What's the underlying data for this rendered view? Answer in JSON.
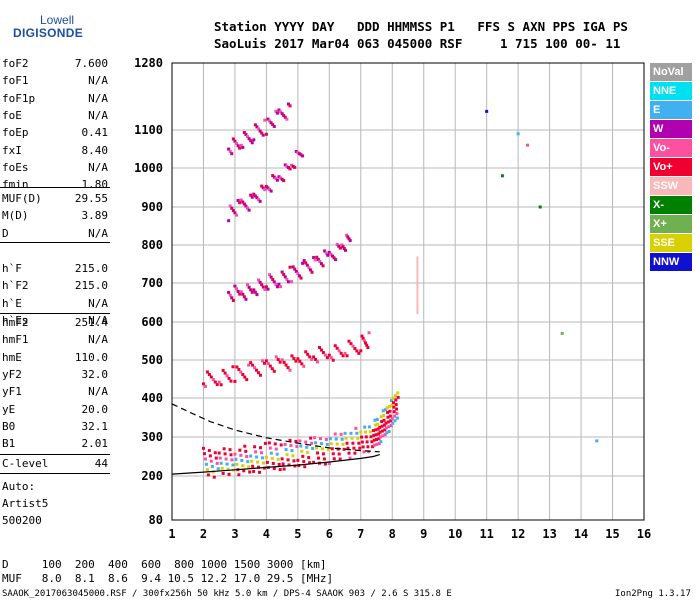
{
  "logo": {
    "line1": "Lowell",
    "line2": "DIGISONDE"
  },
  "header": {
    "line1": "Station YYYY DAY   DDD HHMMSS P1   FFS S AXN PPS IGA PS",
    "line2": "SaoLuis 2017 Mar04 063 045000 RSF     1 715 100 00- 11"
  },
  "params": {
    "group1": [
      {
        "name": "foF2",
        "value": "7.600"
      },
      {
        "name": "foF1",
        "value": "N/A"
      },
      {
        "name": "foF1p",
        "value": "N/A"
      },
      {
        "name": "foE",
        "value": "N/A"
      },
      {
        "name": "foEp",
        "value": "0.41"
      },
      {
        "name": "fxI",
        "value": "8.40"
      },
      {
        "name": "foEs",
        "value": "N/A"
      },
      {
        "name": "fmin",
        "value": "1.80"
      }
    ],
    "group2": [
      {
        "name": "MUF(D)",
        "value": "29.55"
      },
      {
        "name": "M(D)",
        "value": "3.89"
      },
      {
        "name": "D",
        "value": "N/A"
      }
    ],
    "group3": [
      {
        "name": "h`F",
        "value": "215.0"
      },
      {
        "name": "h`F2",
        "value": "215.0"
      },
      {
        "name": "h`E",
        "value": "N/A"
      },
      {
        "name": "h`Es",
        "value": "N/A"
      }
    ],
    "group4": [
      {
        "name": "hmF2",
        "value": "251.4"
      },
      {
        "name": "hmF1",
        "value": "N/A"
      },
      {
        "name": "hmE",
        "value": "110.0"
      },
      {
        "name": "yF2",
        "value": "32.0"
      },
      {
        "name": "yF1",
        "value": "N/A"
      },
      {
        "name": "yE",
        "value": "20.0"
      },
      {
        "name": "B0",
        "value": "32.1"
      },
      {
        "name": "B1",
        "value": "2.01"
      }
    ],
    "clevel": {
      "name": "C-level",
      "value": "44"
    }
  },
  "notes": {
    "auto": "Auto:",
    "artist": "Artist5",
    "version": "500200"
  },
  "legend": [
    {
      "label": "NoVal",
      "color": "#a0a0a0"
    },
    {
      "label": "NNE",
      "color": "#00e0f0"
    },
    {
      "label": "E",
      "color": "#40b0f0"
    },
    {
      "label": "W",
      "color": "#b000b0"
    },
    {
      "label": "Vo-",
      "color": "#ff50a0"
    },
    {
      "label": "Vo+",
      "color": "#f00030"
    },
    {
      "label": "SSW",
      "color": "#f8b8b8"
    },
    {
      "label": "X-",
      "color": "#008000"
    },
    {
      "label": "X+",
      "color": "#70b050"
    },
    {
      "label": "SSE",
      "color": "#d8d000"
    },
    {
      "label": "NNW",
      "color": "#1010d0"
    }
  ],
  "bottom": {
    "d_row": "D     100  200  400  600  800 1000 1500 3000 [km]",
    "muf_row": "MUF   8.0  8.1  8.6  9.4 10.5 12.2 17.0 29.5 [MHz]"
  },
  "footer": {
    "left": "SAAOK_2017063045000.RSF / 300fx256h 50 kHz 5.0 km / DPS-4 SAAOK 903 / 2.6 S 315.8 E",
    "right": "Ion2Png 1.3.17"
  },
  "chart_data": {
    "type": "scatter",
    "xlabel": "",
    "ylabel": "",
    "xlim": [
      1,
      16
    ],
    "ylim": [
      80,
      1280
    ],
    "x_ticks": [
      1,
      2,
      3,
      4,
      5,
      6,
      7,
      8,
      9,
      10,
      11,
      12,
      13,
      14,
      15,
      16
    ],
    "y_ticks": [
      80,
      200,
      300,
      400,
      500,
      600,
      700,
      800,
      900,
      1000,
      1100,
      1280
    ],
    "grid": true,
    "traces": [
      {
        "name": "F2 trace",
        "color": "#f00030",
        "points": [
          [
            2.0,
            235
          ],
          [
            2.5,
            232
          ],
          [
            3.0,
            238
          ],
          [
            3.5,
            242
          ],
          [
            4.0,
            248
          ],
          [
            4.5,
            253
          ],
          [
            5.0,
            258
          ],
          [
            5.5,
            262
          ],
          [
            6.0,
            268
          ],
          [
            6.5,
            278
          ],
          [
            7.0,
            290
          ],
          [
            7.4,
            303
          ],
          [
            7.6,
            320
          ],
          [
            7.8,
            340
          ],
          [
            8.0,
            360
          ],
          [
            8.2,
            390
          ]
        ]
      },
      {
        "name": "F2 2nd hop",
        "color": "#f00030",
        "points": [
          [
            2.0,
            445
          ],
          [
            2.5,
            455
          ],
          [
            3.0,
            462
          ],
          [
            3.5,
            472
          ],
          [
            4.0,
            482
          ],
          [
            4.5,
            490
          ],
          [
            5.0,
            498
          ],
          [
            5.5,
            508
          ],
          [
            6.0,
            518
          ],
          [
            6.5,
            528
          ],
          [
            7.0,
            540
          ],
          [
            7.3,
            555
          ]
        ]
      },
      {
        "name": "F2 3rd hop",
        "color": "#b000b0",
        "points": [
          [
            2.8,
            668
          ],
          [
            3.2,
            675
          ],
          [
            3.6,
            685
          ],
          [
            4.0,
            698
          ],
          [
            4.4,
            710
          ],
          [
            4.8,
            722
          ],
          [
            5.2,
            738
          ],
          [
            5.6,
            752
          ],
          [
            6.0,
            770
          ],
          [
            6.4,
            795
          ],
          [
            6.7,
            820
          ]
        ]
      },
      {
        "name": "F2 4th hop",
        "color": "#b000b0",
        "points": [
          [
            2.8,
            885
          ],
          [
            3.2,
            900
          ],
          [
            3.6,
            920
          ],
          [
            4.0,
            945
          ],
          [
            4.4,
            975
          ],
          [
            4.8,
            1010
          ],
          [
            5.2,
            1050
          ]
        ]
      },
      {
        "name": "F2 5th hop",
        "color": "#b000b0",
        "points": [
          [
            2.8,
            1055
          ],
          [
            3.2,
            1070
          ],
          [
            3.6,
            1090
          ],
          [
            4.0,
            1110
          ],
          [
            4.4,
            1135
          ],
          [
            4.8,
            1160
          ]
        ]
      },
      {
        "name": "O profile",
        "color": "#000000",
        "points": [
          [
            1.0,
            205
          ],
          [
            2.0,
            210
          ],
          [
            3.0,
            216
          ],
          [
            4.0,
            222
          ],
          [
            5.0,
            228
          ],
          [
            6.0,
            236
          ],
          [
            7.0,
            245
          ],
          [
            7.4,
            250
          ],
          [
            7.6,
            255
          ]
        ]
      },
      {
        "name": "X dashed",
        "color": "#000000",
        "points": [
          [
            1.0,
            385
          ],
          [
            1.6,
            362
          ],
          [
            2.2,
            340
          ],
          [
            3.0,
            318
          ],
          [
            4.0,
            298
          ],
          [
            5.0,
            284
          ],
          [
            6.0,
            272
          ],
          [
            7.0,
            265
          ],
          [
            7.6,
            262
          ]
        ]
      }
    ],
    "scatter_extra": [
      {
        "x": 8.8,
        "y": 620,
        "y2": 770,
        "color": "#f8b8b8"
      },
      {
        "x": 11.0,
        "y": 1150,
        "color": "#1010d0"
      },
      {
        "x": 11.5,
        "y": 980,
        "color": "#008000"
      },
      {
        "x": 12.0,
        "y": 1090,
        "color": "#40b0f0"
      },
      {
        "x": 12.3,
        "y": 1060,
        "color": "#ff50a0"
      },
      {
        "x": 12.7,
        "y": 900,
        "color": "#008000"
      },
      {
        "x": 13.4,
        "y": 570,
        "color": "#70b050"
      },
      {
        "x": 14.5,
        "y": 290,
        "color": "#40b0f0"
      }
    ]
  }
}
